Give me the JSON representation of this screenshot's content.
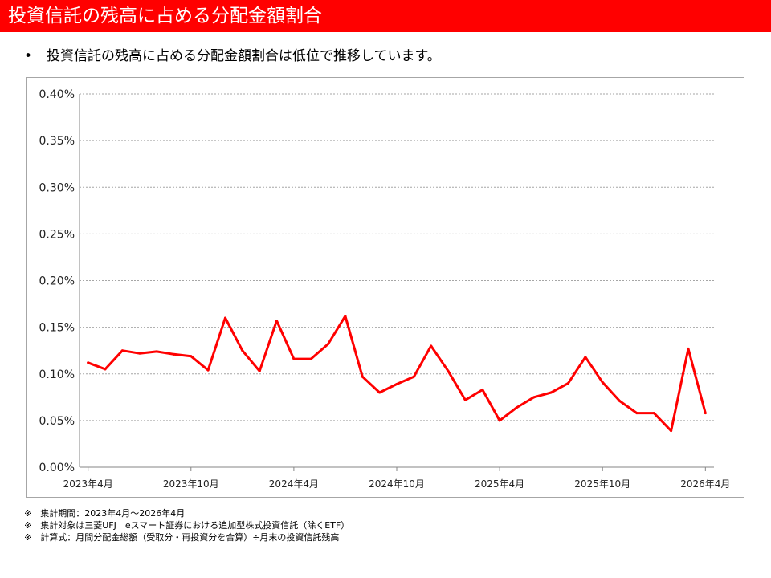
{
  "header": {
    "title": "投資信託の残高に占める分配金額割合"
  },
  "summary": {
    "bullet": "•",
    "text": "投資信託の残高に占める分配金額割合は低位で推移しています。"
  },
  "notes": [
    "※　集計期間：2023年4月～2026年4月",
    "※　集計対象は三菱UFJ　eスマート証券における追加型株式投資信託（除くETF）",
    "※　計算式：月間分配金総額（受取分・再投資分を合算）÷月末の投資信託残高"
  ],
  "colors": {
    "title_bg": "#ff0000",
    "line": "#ff0000",
    "grid": "#a6a6a6"
  },
  "chart_data": {
    "type": "line",
    "title": "",
    "xlabel": "",
    "ylabel": "",
    "ylim": [
      0,
      0.4
    ],
    "y_ticks": [
      0,
      0.05,
      0.1,
      0.15,
      0.2,
      0.25,
      0.3,
      0.35,
      0.4
    ],
    "y_tick_labels": [
      "0.00%",
      "0.05%",
      "0.10%",
      "0.15%",
      "0.20%",
      "0.25%",
      "0.30%",
      "0.35%",
      "0.40%"
    ],
    "grid": true,
    "x_tick_labels": [
      {
        "index": 0,
        "label": "2023年4月"
      },
      {
        "index": 6,
        "label": "2023年10月"
      },
      {
        "index": 12,
        "label": "2024年4月"
      },
      {
        "index": 18,
        "label": "2024年10月"
      },
      {
        "index": 24,
        "label": "2025年4月"
      },
      {
        "index": 30,
        "label": "2025年10月"
      },
      {
        "index": 36,
        "label": "2026年4月"
      }
    ],
    "series": [
      {
        "values": [
          0.112,
          0.105,
          0.125,
          0.122,
          0.124,
          0.121,
          0.119,
          0.104,
          0.16,
          0.125,
          0.103,
          0.157,
          0.116,
          0.116,
          0.132,
          0.162,
          0.097,
          0.08,
          0.089,
          0.097,
          0.13,
          0.103,
          0.072,
          0.083,
          0.05,
          0.064,
          0.075,
          0.08,
          0.09,
          0.118,
          0.091,
          0.071,
          0.058,
          0.058,
          0.039,
          0.127,
          0.058
        ]
      }
    ]
  }
}
